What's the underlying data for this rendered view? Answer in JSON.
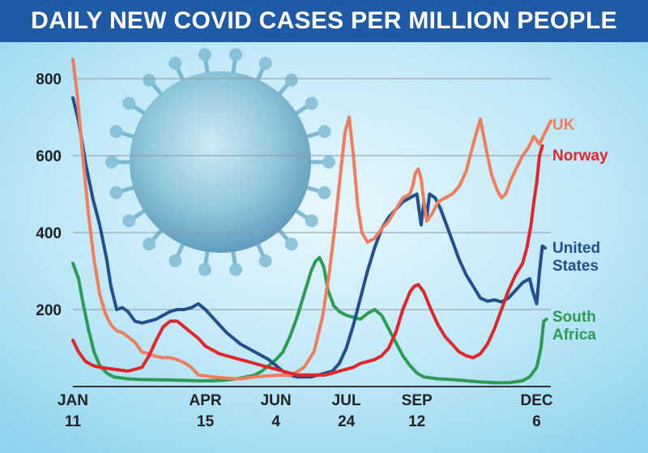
{
  "header": {
    "title": "DAILY NEW COVID CASES PER MILLION PEOPLE"
  },
  "colors": {
    "title_bg": "#1f5aa6",
    "uk": "#ef7e5d",
    "norway": "#e0262a",
    "united_states": "#234f8f",
    "south_africa": "#2e9b55"
  },
  "chart_data": {
    "type": "line",
    "title": "DAILY NEW COVID CASES PER MILLION PEOPLE",
    "xlabel": "",
    "ylabel": "",
    "ylim": [
      0,
      850
    ],
    "yticks": [
      200,
      400,
      600,
      800
    ],
    "grid": true,
    "legend": "inline-right",
    "xticks": [
      {
        "day": 11,
        "line1": "JAN",
        "line2": "11"
      },
      {
        "day": 105,
        "line1": "APR",
        "line2": "15"
      },
      {
        "day": 155,
        "line1": "JUN",
        "line2": "4"
      },
      {
        "day": 205,
        "line1": "JUL",
        "line2": "24"
      },
      {
        "day": 255,
        "line1": "SEP",
        "line2": "12"
      },
      {
        "day": 340,
        "line1": "DEC",
        "line2": "6"
      }
    ],
    "series": [
      {
        "name": "UK",
        "label_lines": [
          "UK"
        ],
        "color": "#ef7e5d",
        "points": [
          [
            11,
            850
          ],
          [
            14,
            760
          ],
          [
            18,
            600
          ],
          [
            22,
            450
          ],
          [
            26,
            330
          ],
          [
            30,
            240
          ],
          [
            34,
            190
          ],
          [
            38,
            160
          ],
          [
            42,
            145
          ],
          [
            46,
            140
          ],
          [
            50,
            130
          ],
          [
            55,
            115
          ],
          [
            60,
            90
          ],
          [
            65,
            85
          ],
          [
            70,
            78
          ],
          [
            75,
            75
          ],
          [
            80,
            75
          ],
          [
            85,
            70
          ],
          [
            90,
            62
          ],
          [
            95,
            50
          ],
          [
            100,
            30
          ],
          [
            105,
            28
          ],
          [
            110,
            25
          ],
          [
            120,
            22
          ],
          [
            130,
            20
          ],
          [
            140,
            25
          ],
          [
            150,
            28
          ],
          [
            160,
            30
          ],
          [
            165,
            28
          ],
          [
            175,
            50
          ],
          [
            182,
            90
          ],
          [
            188,
            180
          ],
          [
            193,
            300
          ],
          [
            197,
            420
          ],
          [
            201,
            560
          ],
          [
            204,
            660
          ],
          [
            207,
            700
          ],
          [
            210,
            600
          ],
          [
            213,
            470
          ],
          [
            216,
            400
          ],
          [
            220,
            375
          ],
          [
            225,
            385
          ],
          [
            230,
            410
          ],
          [
            235,
            430
          ],
          [
            240,
            460
          ],
          [
            245,
            490
          ],
          [
            250,
            500
          ],
          [
            252,
            520
          ],
          [
            254,
            555
          ],
          [
            256,
            565
          ],
          [
            258,
            540
          ],
          [
            260,
            480
          ],
          [
            262,
            430
          ],
          [
            266,
            450
          ],
          [
            270,
            480
          ],
          [
            275,
            490
          ],
          [
            280,
            500
          ],
          [
            285,
            520
          ],
          [
            290,
            560
          ],
          [
            295,
            630
          ],
          [
            300,
            695
          ],
          [
            304,
            620
          ],
          [
            308,
            550
          ],
          [
            312,
            510
          ],
          [
            315,
            490
          ],
          [
            318,
            500
          ],
          [
            322,
            540
          ],
          [
            326,
            570
          ],
          [
            330,
            600
          ],
          [
            334,
            620
          ],
          [
            338,
            650
          ],
          [
            342,
            630
          ],
          [
            346,
            660
          ],
          [
            350,
            690
          ]
        ]
      },
      {
        "name": "Norway",
        "label_lines": [
          "Norway"
        ],
        "color": "#e0262a",
        "points": [
          [
            11,
            120
          ],
          [
            15,
            90
          ],
          [
            20,
            65
          ],
          [
            25,
            55
          ],
          [
            30,
            50
          ],
          [
            40,
            45
          ],
          [
            50,
            40
          ],
          [
            60,
            50
          ],
          [
            65,
            80
          ],
          [
            70,
            120
          ],
          [
            75,
            155
          ],
          [
            80,
            170
          ],
          [
            85,
            170
          ],
          [
            90,
            155
          ],
          [
            95,
            140
          ],
          [
            100,
            125
          ],
          [
            105,
            105
          ],
          [
            110,
            95
          ],
          [
            115,
            85
          ],
          [
            120,
            80
          ],
          [
            125,
            75
          ],
          [
            130,
            70
          ],
          [
            135,
            65
          ],
          [
            140,
            60
          ],
          [
            145,
            55
          ],
          [
            150,
            50
          ],
          [
            155,
            45
          ],
          [
            160,
            40
          ],
          [
            165,
            35
          ],
          [
            170,
            30
          ],
          [
            180,
            30
          ],
          [
            190,
            30
          ],
          [
            195,
            35
          ],
          [
            200,
            40
          ],
          [
            205,
            45
          ],
          [
            210,
            50
          ],
          [
            215,
            60
          ],
          [
            220,
            65
          ],
          [
            225,
            70
          ],
          [
            230,
            80
          ],
          [
            235,
            100
          ],
          [
            240,
            140
          ],
          [
            245,
            200
          ],
          [
            250,
            245
          ],
          [
            253,
            260
          ],
          [
            256,
            265
          ],
          [
            260,
            245
          ],
          [
            265,
            200
          ],
          [
            270,
            160
          ],
          [
            275,
            130
          ],
          [
            280,
            110
          ],
          [
            285,
            90
          ],
          [
            290,
            80
          ],
          [
            295,
            75
          ],
          [
            300,
            85
          ],
          [
            305,
            110
          ],
          [
            310,
            150
          ],
          [
            315,
            200
          ],
          [
            320,
            250
          ],
          [
            325,
            290
          ],
          [
            330,
            320
          ],
          [
            333,
            360
          ],
          [
            336,
            420
          ],
          [
            338,
            480
          ],
          [
            340,
            530
          ],
          [
            342,
            600
          ],
          [
            344,
            625
          ]
        ]
      },
      {
        "name": "United States",
        "label_lines": [
          "United",
          "States"
        ],
        "color": "#234f8f",
        "points": [
          [
            11,
            750
          ],
          [
            15,
            690
          ],
          [
            20,
            580
          ],
          [
            25,
            490
          ],
          [
            30,
            420
          ],
          [
            35,
            330
          ],
          [
            38,
            260
          ],
          [
            42,
            200
          ],
          [
            46,
            205
          ],
          [
            50,
            195
          ],
          [
            55,
            170
          ],
          [
            60,
            165
          ],
          [
            65,
            170
          ],
          [
            70,
            175
          ],
          [
            75,
            185
          ],
          [
            80,
            195
          ],
          [
            85,
            200
          ],
          [
            90,
            200
          ],
          [
            95,
            205
          ],
          [
            100,
            215
          ],
          [
            105,
            200
          ],
          [
            110,
            180
          ],
          [
            115,
            160
          ],
          [
            120,
            140
          ],
          [
            125,
            125
          ],
          [
            130,
            110
          ],
          [
            135,
            100
          ],
          [
            140,
            90
          ],
          [
            145,
            80
          ],
          [
            150,
            70
          ],
          [
            155,
            55
          ],
          [
            160,
            40
          ],
          [
            165,
            30
          ],
          [
            170,
            25
          ],
          [
            175,
            25
          ],
          [
            180,
            25
          ],
          [
            185,
            30
          ],
          [
            190,
            35
          ],
          [
            195,
            40
          ],
          [
            200,
            60
          ],
          [
            205,
            100
          ],
          [
            210,
            160
          ],
          [
            215,
            230
          ],
          [
            220,
            300
          ],
          [
            225,
            360
          ],
          [
            230,
            410
          ],
          [
            235,
            440
          ],
          [
            240,
            460
          ],
          [
            245,
            480
          ],
          [
            250,
            490
          ],
          [
            255,
            500
          ],
          [
            258,
            420
          ],
          [
            260,
            480
          ],
          [
            262,
            440
          ],
          [
            264,
            500
          ],
          [
            268,
            490
          ],
          [
            272,
            460
          ],
          [
            276,
            420
          ],
          [
            280,
            380
          ],
          [
            285,
            330
          ],
          [
            290,
            290
          ],
          [
            295,
            260
          ],
          [
            300,
            230
          ],
          [
            305,
            222
          ],
          [
            310,
            225
          ],
          [
            315,
            220
          ],
          [
            320,
            230
          ],
          [
            325,
            250
          ],
          [
            330,
            270
          ],
          [
            335,
            280
          ],
          [
            337,
            250
          ],
          [
            340,
            215
          ],
          [
            342,
            300
          ],
          [
            344,
            365
          ],
          [
            346,
            360
          ]
        ]
      },
      {
        "name": "South Africa",
        "label_lines": [
          "South",
          "Africa"
        ],
        "color": "#2e9b55",
        "points": [
          [
            11,
            320
          ],
          [
            15,
            280
          ],
          [
            18,
            220
          ],
          [
            22,
            150
          ],
          [
            26,
            90
          ],
          [
            30,
            55
          ],
          [
            35,
            35
          ],
          [
            40,
            25
          ],
          [
            50,
            20
          ],
          [
            60,
            18
          ],
          [
            80,
            17
          ],
          [
            100,
            15
          ],
          [
            110,
            15
          ],
          [
            120,
            17
          ],
          [
            130,
            22
          ],
          [
            140,
            30
          ],
          [
            145,
            40
          ],
          [
            150,
            55
          ],
          [
            155,
            70
          ],
          [
            160,
            90
          ],
          [
            165,
            130
          ],
          [
            170,
            180
          ],
          [
            175,
            240
          ],
          [
            180,
            300
          ],
          [
            183,
            325
          ],
          [
            186,
            335
          ],
          [
            189,
            310
          ],
          [
            192,
            250
          ],
          [
            196,
            210
          ],
          [
            200,
            195
          ],
          [
            205,
            185
          ],
          [
            210,
            180
          ],
          [
            215,
            175
          ],
          [
            220,
            190
          ],
          [
            225,
            200
          ],
          [
            230,
            185
          ],
          [
            235,
            150
          ],
          [
            240,
            115
          ],
          [
            245,
            80
          ],
          [
            250,
            55
          ],
          [
            255,
            35
          ],
          [
            260,
            25
          ],
          [
            270,
            20
          ],
          [
            280,
            18
          ],
          [
            290,
            15
          ],
          [
            300,
            12
          ],
          [
            310,
            10
          ],
          [
            320,
            10
          ],
          [
            330,
            15
          ],
          [
            335,
            25
          ],
          [
            340,
            50
          ],
          [
            343,
            100
          ],
          [
            345,
            170
          ],
          [
            347,
            175
          ]
        ]
      }
    ]
  }
}
